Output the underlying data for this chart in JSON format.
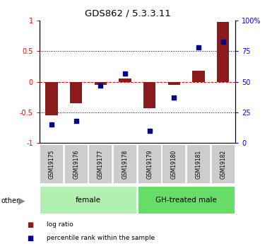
{
  "title": "GDS862 / 5.3.3.11",
  "samples": [
    "GSM19175",
    "GSM19176",
    "GSM19177",
    "GSM19178",
    "GSM19179",
    "GSM19180",
    "GSM19181",
    "GSM19182"
  ],
  "log_ratio": [
    -0.55,
    -0.35,
    -0.05,
    0.05,
    -0.43,
    -0.05,
    0.18,
    0.98
  ],
  "percentile": [
    15,
    18,
    47,
    57,
    10,
    37,
    78,
    83
  ],
  "bar_color": "#8B1A1A",
  "dot_color": "#00008B",
  "bar_width": 0.5,
  "ylim": [
    -1,
    1
  ],
  "y2lim": [
    0,
    100
  ],
  "yticks": [
    -1,
    -0.5,
    0,
    0.5,
    1
  ],
  "y2ticks": [
    0,
    25,
    50,
    75,
    100
  ],
  "background_color": "#ffffff",
  "female_color": "#b2f0b2",
  "male_color": "#66dd66",
  "label_box_color": "#cccccc",
  "legend_red_label": "log ratio",
  "legend_blue_label": "percentile rank within the sample",
  "group_boundaries": [
    [
      0,
      4,
      "female"
    ],
    [
      4,
      8,
      "GH-treated male"
    ]
  ]
}
